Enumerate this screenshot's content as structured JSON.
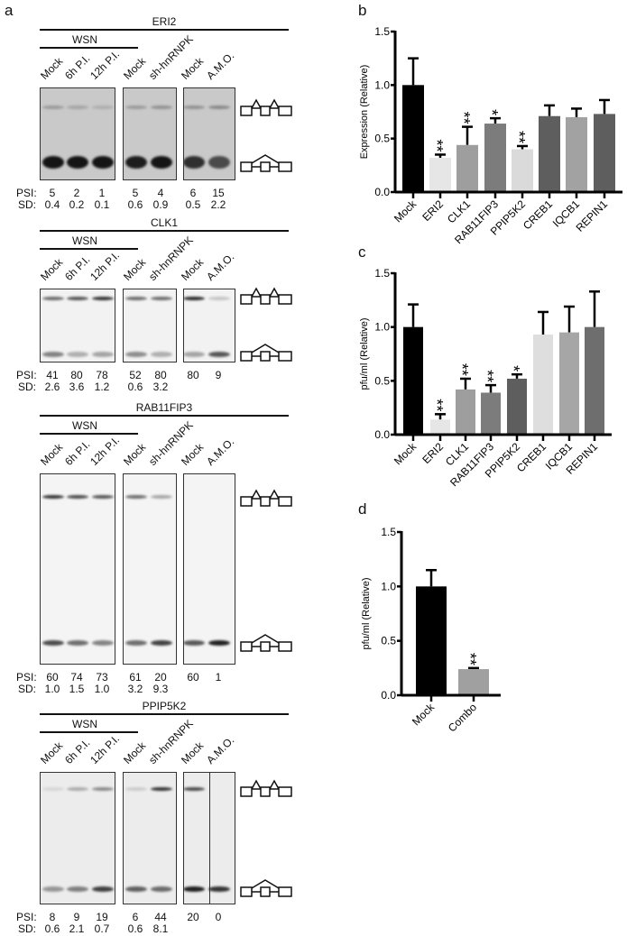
{
  "panel_labels": {
    "a": "a",
    "b": "b",
    "c": "c",
    "d": "d"
  },
  "gels": [
    {
      "gene": "ERI2",
      "group": "WSN",
      "lanes": [
        "Mock",
        "6h P.I.",
        "12h P.I.",
        "Mock",
        "sh-hnRNPK",
        "Mock",
        "A.M.O."
      ],
      "psi_label": "PSI:",
      "sd_label": "SD:",
      "psi": [
        "5",
        "2",
        "1",
        "5",
        "4",
        "6",
        "15"
      ],
      "sd": [
        "0.4",
        "0.2",
        "0.1",
        "0.6",
        "0.9",
        "0.5",
        "2.2"
      ]
    },
    {
      "gene": "CLK1",
      "group": "WSN",
      "lanes": [
        "Mock",
        "6h P.I.",
        "12h P.I.",
        "Mock",
        "sh-hnRNPK",
        "Mock",
        "A.M.O."
      ],
      "psi_label": "PSI:",
      "sd_label": "SD:",
      "psi": [
        "41",
        "80",
        "78",
        "52",
        "80",
        "80",
        "9"
      ],
      "sd": [
        "2.6",
        "3.6",
        "1.2",
        "0.6",
        "3.2",
        "",
        ""
      ]
    },
    {
      "gene": "RAB11FIP3",
      "group": "WSN",
      "lanes": [
        "Mock",
        "6h P.I.",
        "12h P.I.",
        "Mock",
        "sh-hnRNPK",
        "Mock",
        "A.M.O."
      ],
      "psi_label": "PSI:",
      "sd_label": "SD:",
      "psi": [
        "60",
        "74",
        "73",
        "61",
        "20",
        "60",
        "1"
      ],
      "sd": [
        "1.0",
        "1.5",
        "1.0",
        "3.2",
        "9.3",
        "",
        ""
      ]
    },
    {
      "gene": "PPIP5K2",
      "group": "WSN",
      "lanes": [
        "Mock",
        "6h P.I.",
        "12h P.I.",
        "Mock",
        "sh-hnRNPK",
        "Mock",
        "A.M.O."
      ],
      "psi_label": "PSI:",
      "sd_label": "SD:",
      "psi": [
        "8",
        "9",
        "19",
        "6",
        "44",
        "20",
        "0"
      ],
      "sd": [
        "0.6",
        "2.1",
        "0.7",
        "0.6",
        "8.1",
        "",
        ""
      ]
    }
  ],
  "chart_data": [
    {
      "panel": "b",
      "type": "bar",
      "ylabel": "Expression (Relative)",
      "ylim": [
        0,
        1.5
      ],
      "yticks": [
        "0.0",
        "0.5",
        "1.0",
        "1.5"
      ],
      "categories": [
        "Mock",
        "ERI2",
        "CLK1",
        "RAB11FIP3",
        "PPIP5K2",
        "CREB1",
        "IQCB1",
        "REPIN1"
      ],
      "values": [
        1.0,
        0.32,
        0.44,
        0.64,
        0.4,
        0.71,
        0.7,
        0.73
      ],
      "errors": [
        0.25,
        0.03,
        0.17,
        0.05,
        0.03,
        0.1,
        0.08,
        0.13
      ],
      "significance": [
        "",
        "**",
        "**",
        "*",
        "**",
        "",
        "",
        ""
      ],
      "colors": [
        "#000000",
        "#e6e6e6",
        "#9e9e9e",
        "#7c7c7c",
        "#dadada",
        "#5e5e5e",
        "#a2a2a2",
        "#5e5e5e"
      ]
    },
    {
      "panel": "c",
      "type": "bar",
      "ylabel": "pfu/ml (Relative)",
      "ylim": [
        0,
        1.5
      ],
      "yticks": [
        "0.0",
        "0.5",
        "1.0",
        "1.5"
      ],
      "categories": [
        "Mock",
        "ERI2",
        "CLK1",
        "RAB11FIP3",
        "PPIP5K2",
        "CREB1",
        "IQCB1",
        "REPIN1"
      ],
      "values": [
        1.0,
        0.14,
        0.42,
        0.39,
        0.52,
        0.93,
        0.95,
        1.0
      ],
      "errors": [
        0.21,
        0.05,
        0.1,
        0.07,
        0.04,
        0.21,
        0.24,
        0.33
      ],
      "significance": [
        "",
        "**",
        "**",
        "**",
        "*",
        "",
        "",
        ""
      ],
      "colors": [
        "#000000",
        "#e6e6e6",
        "#9e9e9e",
        "#7c7c7c",
        "#5e5e5e",
        "#dedede",
        "#a6a6a6",
        "#6e6e6e"
      ]
    },
    {
      "panel": "d",
      "type": "bar",
      "ylabel": "pfu/ml (Relative)",
      "ylim": [
        0,
        1.5
      ],
      "yticks": [
        "0.0",
        "0.5",
        "1.0",
        "1.5"
      ],
      "categories": [
        "Mock",
        "Combo"
      ],
      "values": [
        1.0,
        0.24
      ],
      "errors": [
        0.15,
        0.01
      ],
      "significance": [
        "",
        "**"
      ],
      "colors": [
        "#000000",
        "#a0a0a0"
      ]
    }
  ]
}
